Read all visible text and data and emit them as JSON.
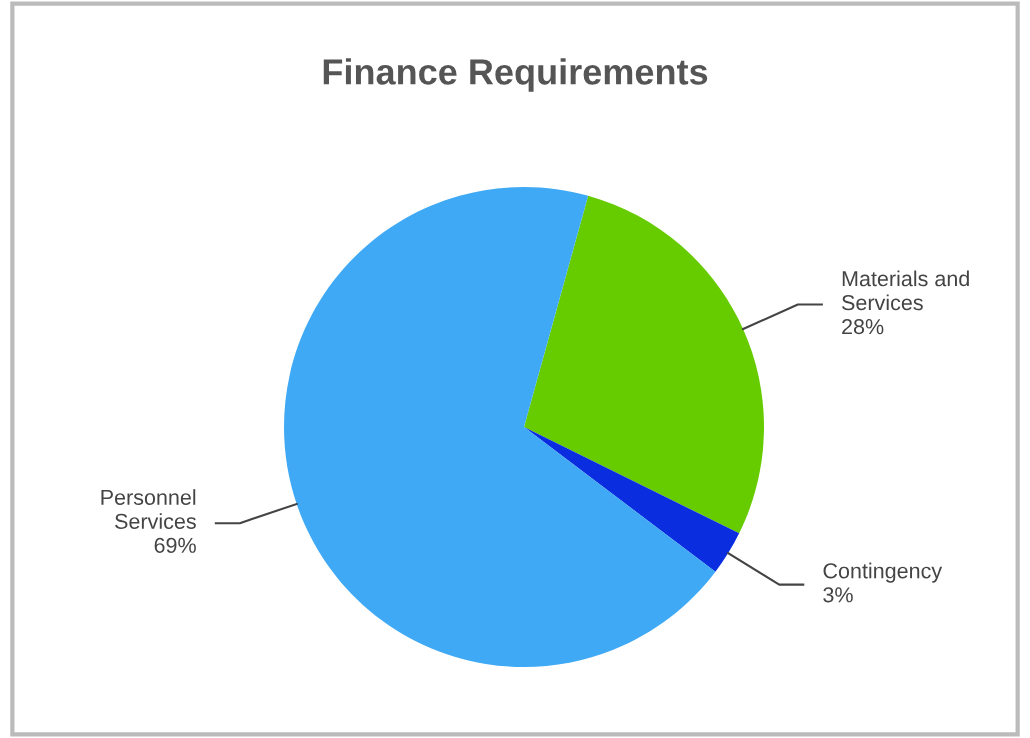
{
  "chart_data": {
    "type": "pie",
    "title": "Finance Requirements",
    "categories": [
      "Materials and Services",
      "Contingency",
      "Personnel Services"
    ],
    "values": [
      28,
      3,
      69
    ],
    "value_labels": [
      "28%",
      "3%",
      "69%"
    ],
    "colors": [
      "#66cc00",
      "#0a2de0",
      "#3fa9f5"
    ]
  }
}
